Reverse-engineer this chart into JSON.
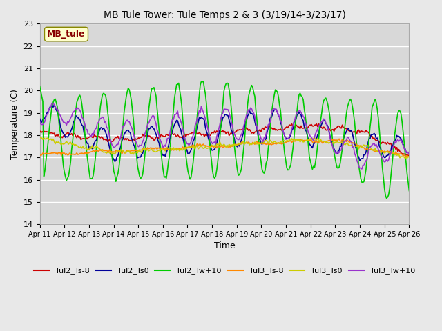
{
  "title": "MB Tule Tower: Tule Temps 2 & 3 (3/19/14-3/23/17)",
  "xlabel": "Time",
  "ylabel": "Temperature (C)",
  "ylim": [
    14.0,
    23.0
  ],
  "yticks": [
    14.0,
    15.0,
    16.0,
    17.0,
    18.0,
    19.0,
    20.0,
    21.0,
    22.0,
    23.0
  ],
  "n_days": 15,
  "pts_per_day": 24,
  "xtick_labels": [
    "Apr 11",
    "Apr 12",
    "Apr 13",
    "Apr 14",
    "Apr 15",
    "Apr 16",
    "Apr 17",
    "Apr 18",
    "Apr 19",
    "Apr 20",
    "Apr 21",
    "Apr 22",
    "Apr 23",
    "Apr 24",
    "Apr 25",
    "Apr 26"
  ],
  "bg_outer": "#e8e8e8",
  "bg_plot": "#d8d8d8",
  "grid_color": "#ffffff",
  "line_colors": {
    "Tul2_Ts-8": "#cc0000",
    "Tul2_Ts0": "#000099",
    "Tul2_Tw+10": "#00cc00",
    "Tul3_Ts-8": "#ff8800",
    "Tul3_Ts0": "#cccc00",
    "Tul3_Tw+10": "#9933cc"
  },
  "lw": 1.2,
  "annotation_text": "MB_tule",
  "annotation_color": "#880000",
  "annotation_bg": "#ffffcc",
  "annotation_border": "#888800"
}
